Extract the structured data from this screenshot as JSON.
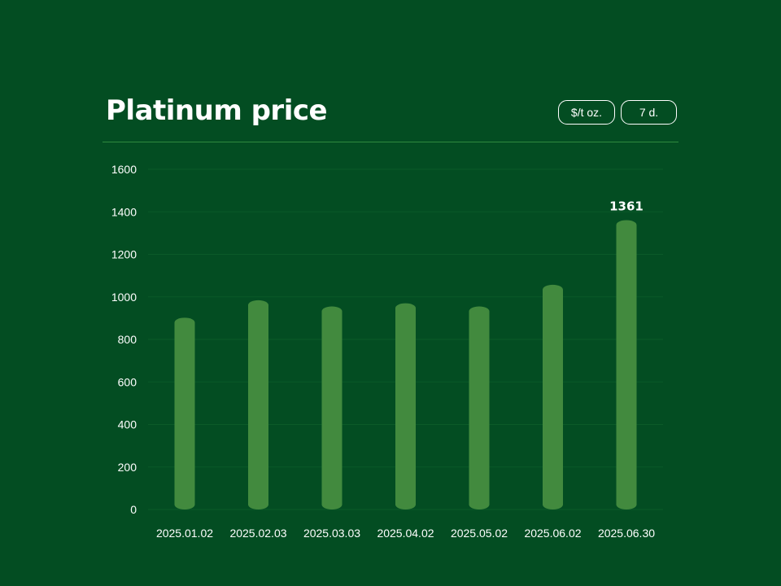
{
  "header": {
    "title": "Platinum price",
    "unit_button": "$/t oz.",
    "range_button": "7 d."
  },
  "colors": {
    "background": "#034d22",
    "bar": "#428a3e",
    "gridline": "#0b5a28",
    "divider": "#2f8a3f",
    "text": "#ffffff"
  },
  "chart_data": {
    "type": "bar",
    "title": "Platinum price",
    "xlabel": "",
    "ylabel": "",
    "categories": [
      "2025.01.02",
      "2025.02.03",
      "2025.03.03",
      "2025.04.02",
      "2025.05.02",
      "2025.06.02",
      "2025.06.30"
    ],
    "values": [
      902,
      984,
      955,
      970,
      955,
      1057,
      1361
    ],
    "ylim": [
      0,
      1600
    ],
    "yticks": [
      0,
      200,
      400,
      600,
      800,
      1000,
      1200,
      1400,
      1600
    ],
    "data_labels": [
      {
        "category": "2025.06.30",
        "text": "1361"
      }
    ],
    "grid": true,
    "legend": "none"
  }
}
